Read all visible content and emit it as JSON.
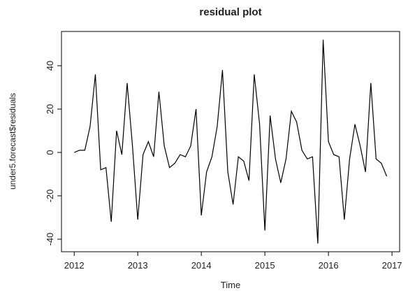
{
  "chart_data": {
    "type": "line",
    "title": "residual plot",
    "x_label": "Time",
    "y_label": "under5.forecast$residuals",
    "x": [
      2012.0,
      2012.083,
      2012.167,
      2012.25,
      2012.333,
      2012.417,
      2012.5,
      2012.583,
      2012.667,
      2012.75,
      2012.833,
      2012.917,
      2013.0,
      2013.083,
      2013.167,
      2013.25,
      2013.333,
      2013.417,
      2013.5,
      2013.583,
      2013.667,
      2013.75,
      2013.833,
      2013.917,
      2014.0,
      2014.083,
      2014.167,
      2014.25,
      2014.333,
      2014.417,
      2014.5,
      2014.583,
      2014.667,
      2014.75,
      2014.833,
      2014.917,
      2015.0,
      2015.083,
      2015.167,
      2015.25,
      2015.333,
      2015.417,
      2015.5,
      2015.583,
      2015.667,
      2015.75,
      2015.833,
      2015.917,
      2016.0,
      2016.083,
      2016.167,
      2016.25,
      2016.333,
      2016.417,
      2016.5,
      2016.583,
      2016.667,
      2016.75,
      2016.833,
      2016.917
    ],
    "series": [
      {
        "color": "#000000",
        "values": [
          0,
          1,
          1,
          12,
          36,
          -8,
          -7,
          -32,
          10,
          -1,
          32,
          3,
          -31,
          -1,
          5,
          -2,
          28,
          3,
          -7,
          -5,
          -1,
          -2,
          3,
          20,
          -29,
          -9,
          -2,
          12,
          38,
          -9,
          -24,
          -2,
          -4,
          -13,
          36,
          13,
          -36,
          17,
          -3,
          -14,
          -3,
          19,
          14,
          1,
          -3,
          -2,
          -42,
          52,
          5,
          -1,
          -2,
          -31,
          -3,
          13,
          3,
          -9,
          32,
          -3,
          -5,
          -11
        ]
      }
    ],
    "xlim": [
      2011.8,
      2017.12
    ],
    "ylim": [
      -45.8,
      55.8
    ],
    "xticks": [
      2012,
      2013,
      2014,
      2015,
      2016,
      2017
    ],
    "yticks": [
      -40,
      -20,
      0,
      20,
      40
    ]
  }
}
